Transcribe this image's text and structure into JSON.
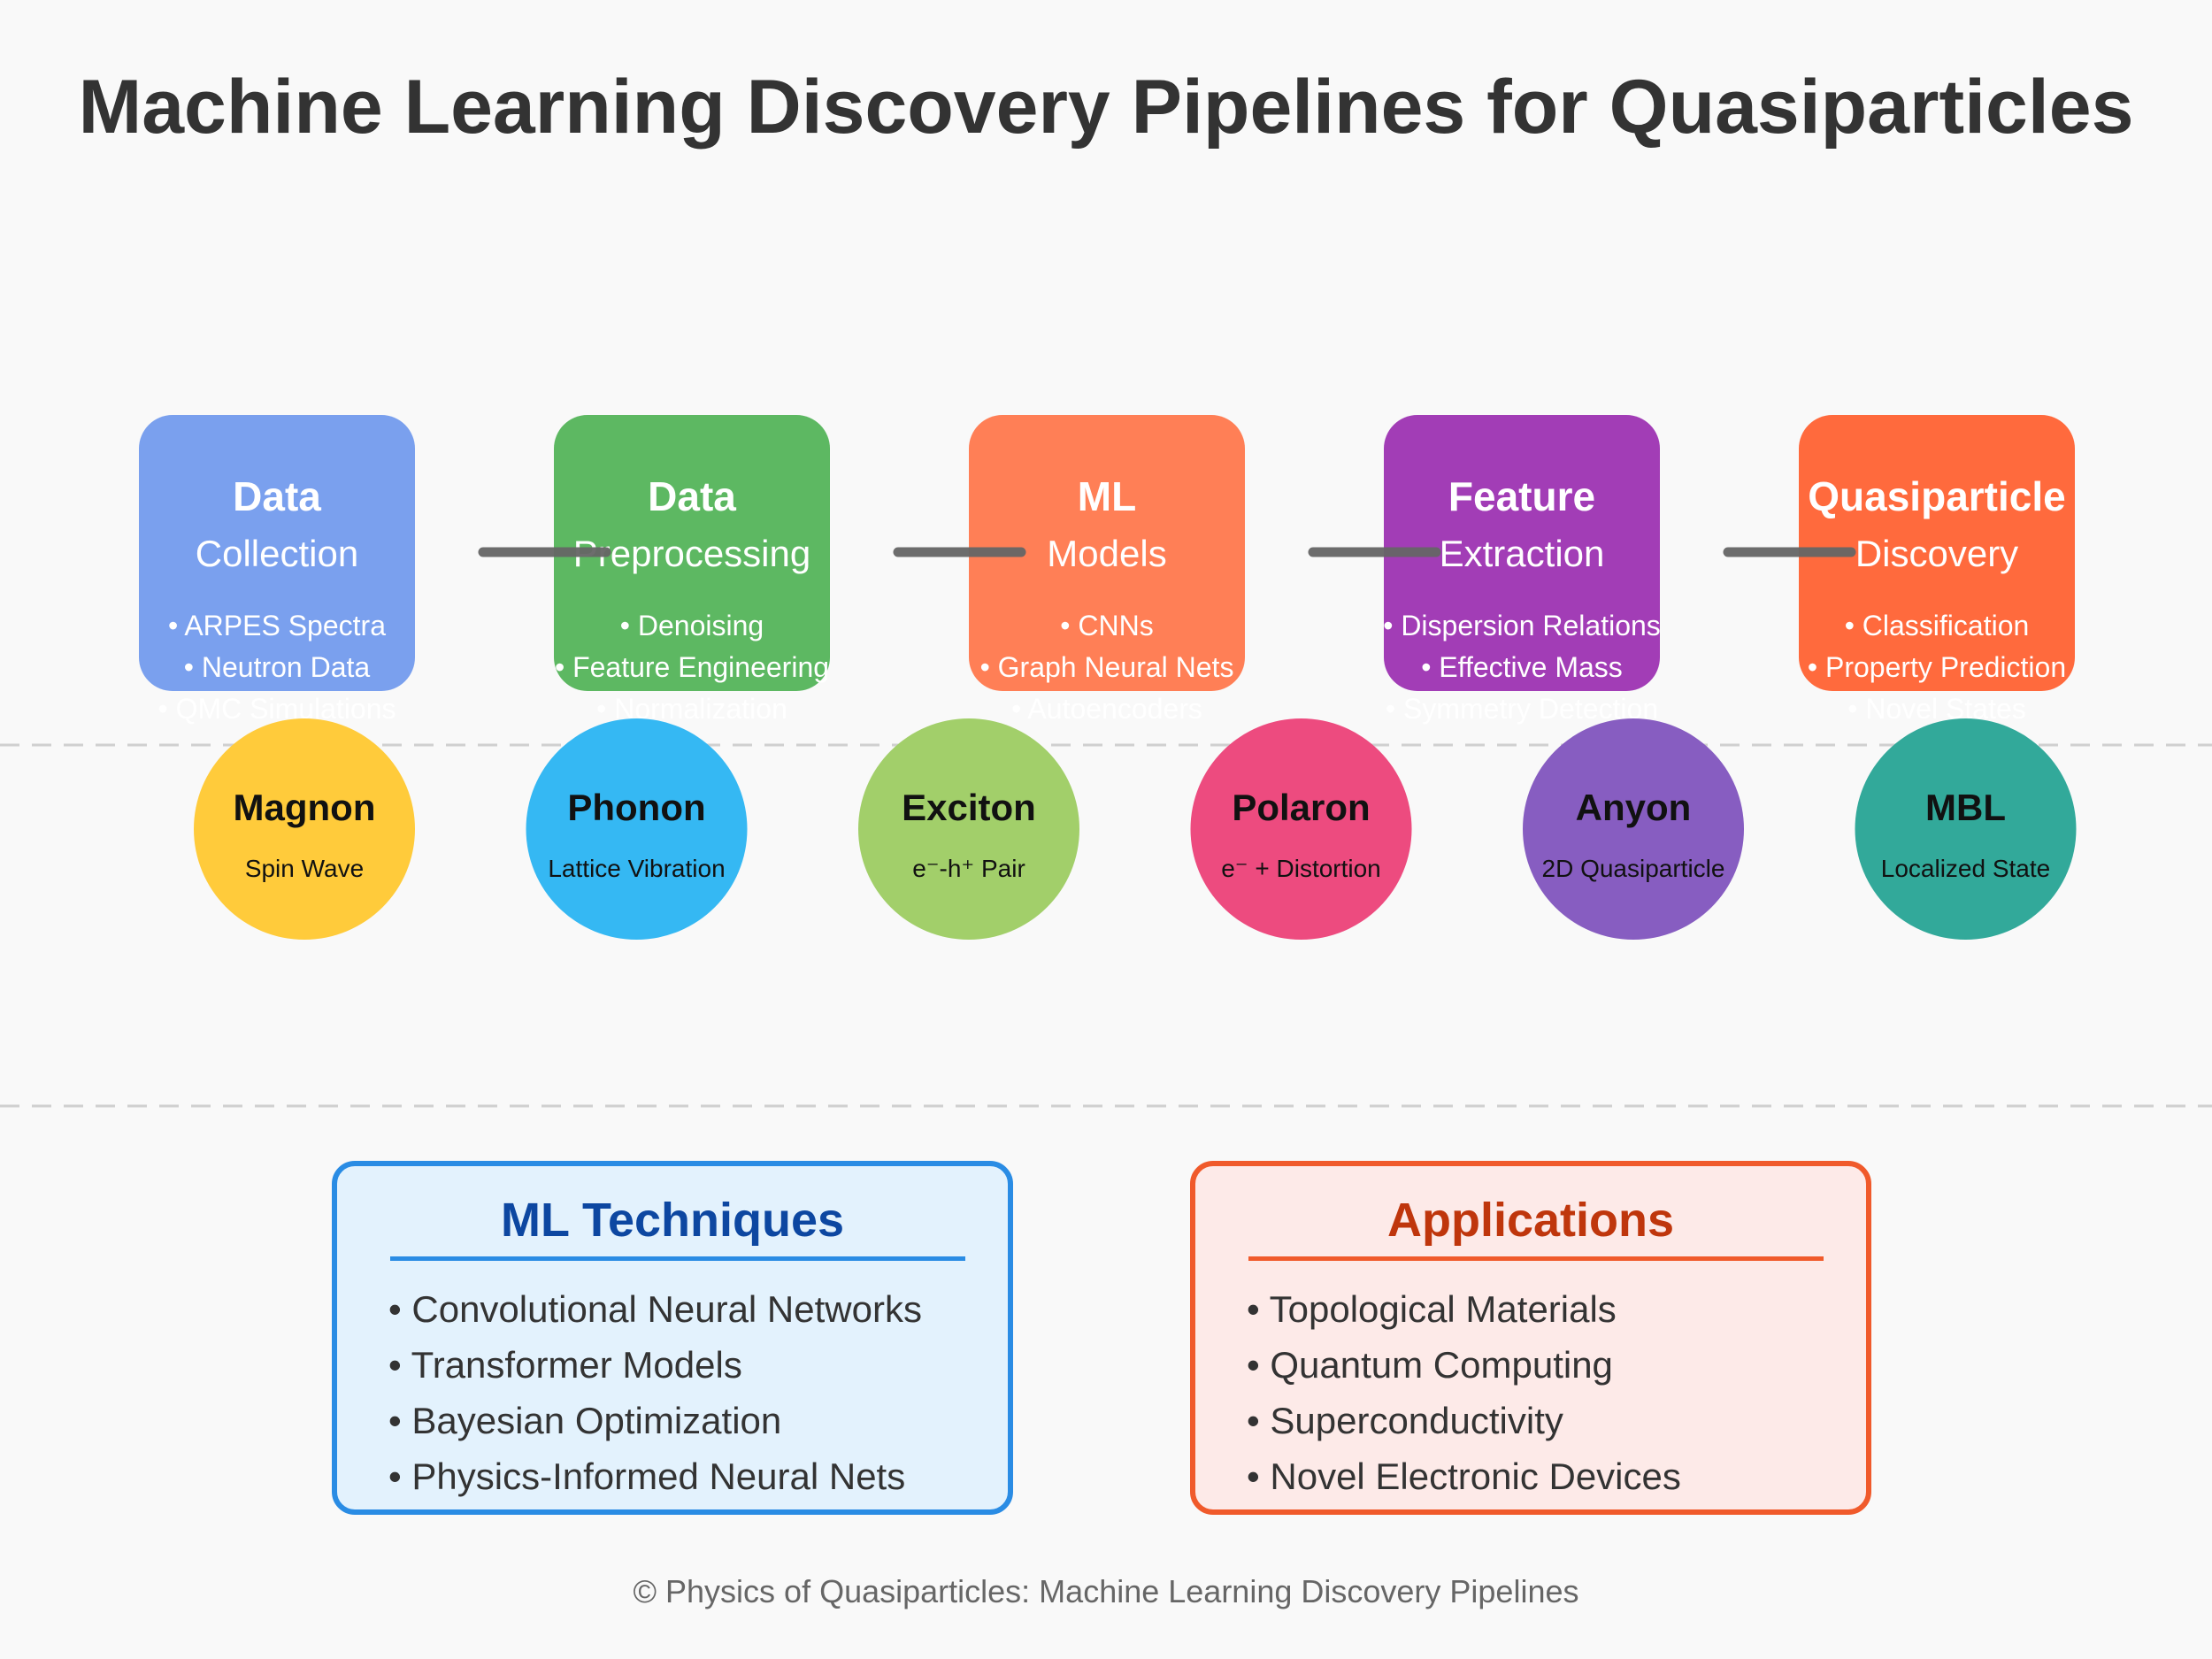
{
  "title": "Machine Learning Discovery Pipelines for Quasiparticles",
  "pipeline": [
    {
      "heading": "Data",
      "sub": "Collection",
      "color": "#7aa0ee",
      "items": [
        "• ARPES Spectra",
        "• Neutron Data",
        "• QMC Simulations"
      ]
    },
    {
      "heading": "Data",
      "sub": "Preprocessing",
      "color": "#5db862",
      "items": [
        "• Denoising",
        "• Feature Engineering",
        "• Normalization"
      ]
    },
    {
      "heading": "ML",
      "sub": "Models",
      "color": "#ff7f56",
      "items": [
        "• CNNs",
        "• Graph Neural Nets",
        "• Autoencoders"
      ]
    },
    {
      "heading": "Feature",
      "sub": "Extraction",
      "color": "#a23db6",
      "items": [
        "• Dispersion Relations",
        "• Effective Mass",
        "• Symmetry Detection"
      ]
    },
    {
      "heading": "Quasiparticle",
      "sub": "Discovery",
      "color": "#ff6a3d",
      "items": [
        "• Classification",
        "• Property Prediction",
        "• Novel States"
      ]
    }
  ],
  "quasiparticles": [
    {
      "name": "Magnon",
      "desc": "Spin Wave",
      "color": "#ffcb3b"
    },
    {
      "name": "Phonon",
      "desc": "Lattice Vibration",
      "color": "#35b8f3"
    },
    {
      "name": "Exciton",
      "desc": "e⁻-h⁺ Pair",
      "color": "#a2cf6a"
    },
    {
      "name": "Polaron",
      "desc": "e⁻ + Distortion",
      "color": "#ed4b7f"
    },
    {
      "name": "Anyon",
      "desc": "2D Quasiparticle",
      "color": "#875dc1"
    },
    {
      "name": "MBL",
      "desc": "Localized State",
      "color": "#32a99a"
    }
  ],
  "techniques": {
    "title": "ML Techniques",
    "items": [
      "• Convolutional Neural Networks",
      "• Transformer Models",
      "• Bayesian Optimization",
      "• Physics-Informed Neural Nets"
    ],
    "border_color": "#2a8ce4",
    "background": "#e3f2fd",
    "title_color": "#0d47a1"
  },
  "applications": {
    "title": "Applications",
    "items": [
      "• Topological Materials",
      "• Quantum Computing",
      "• Superconductivity",
      "• Novel Electronic Devices"
    ],
    "border_color": "#f05a2b",
    "background": "#fdeae8",
    "title_color": "#bf360c"
  },
  "footer": "© Physics of Quasiparticles: Machine Learning Discovery Pipelines"
}
